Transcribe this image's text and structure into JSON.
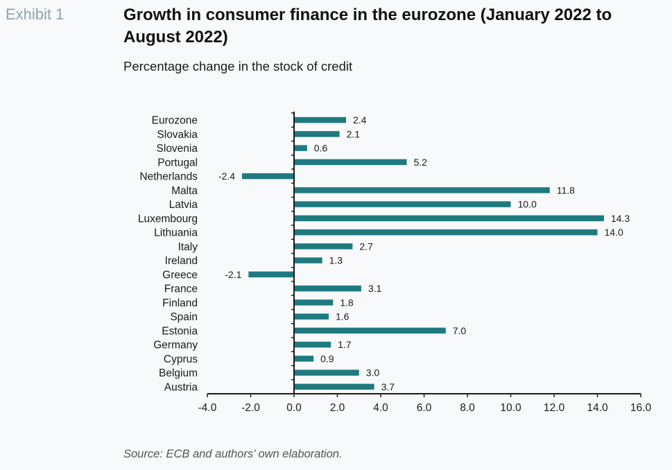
{
  "header": {
    "exhibit": "Exhibit 1",
    "title": "Growth in consumer finance in the eurozone (January 2022 to August 2022)",
    "subtitle": "Percentage change in the stock of credit"
  },
  "footer": {
    "source": "Source: ECB and authors’ own elaboration."
  },
  "colors": {
    "bar": "#1f7a80",
    "axis": "#1a1a1a"
  },
  "chart_data": {
    "type": "bar",
    "orientation": "horizontal",
    "categories": [
      "Eurozone",
      "Slovakia",
      "Slovenia",
      "Portugal",
      "Netherlands",
      "Malta",
      "Latvia",
      "Luxembourg",
      "Lithuania",
      "Italy",
      "Ireland",
      "Greece",
      "France",
      "Finland",
      "Spain",
      "Estonia",
      "Germany",
      "Cyprus",
      "Belgium",
      "Austria"
    ],
    "values": [
      2.4,
      2.1,
      0.6,
      5.2,
      -2.4,
      11.8,
      10.0,
      14.3,
      14.0,
      2.7,
      1.3,
      -2.1,
      3.1,
      1.8,
      1.6,
      7.0,
      1.7,
      0.9,
      3.0,
      3.7
    ],
    "data_labels": [
      "2.4",
      "2.1",
      "0.6",
      "5.2",
      "-2.4",
      "11.8",
      "10.0",
      "14.3",
      "14.0",
      "2.7",
      "1.3",
      "-2.1",
      "3.1",
      "1.8",
      "1.6",
      "7.0",
      "1.7",
      "0.9",
      "3.0",
      "3.7"
    ],
    "xlim": [
      -4.0,
      16.0
    ],
    "xticks": [
      -4.0,
      -2.0,
      0.0,
      2.0,
      4.0,
      6.0,
      8.0,
      10.0,
      12.0,
      14.0,
      16.0
    ],
    "xtick_labels": [
      "-4.0",
      "-2.0",
      "0.0",
      "2.0",
      "4.0",
      "6.0",
      "8.0",
      "10.0",
      "12.0",
      "14.0",
      "16.0"
    ],
    "title": "Growth in consumer finance in the eurozone (January 2022 to August 2022)",
    "subtitle": "Percentage change in the stock of credit",
    "xlabel": "",
    "ylabel": "",
    "grid": false,
    "legend": "none"
  }
}
